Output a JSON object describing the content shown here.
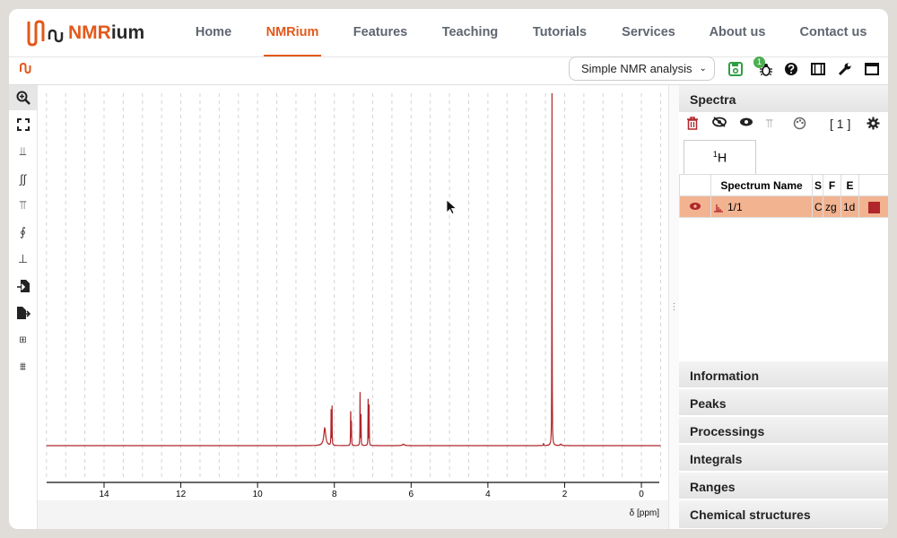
{
  "header": {
    "logo_text_a": "NMR",
    "logo_text_b": "ium",
    "nav": [
      {
        "label": "Home"
      },
      {
        "label": "NMRium",
        "active": true
      },
      {
        "label": "Features"
      },
      {
        "label": "Teaching"
      },
      {
        "label": "Tutorials"
      },
      {
        "label": "Services"
      },
      {
        "label": "About us"
      },
      {
        "label": "Contact us"
      }
    ]
  },
  "toolbar": {
    "workspace": "Simple NMR analysis",
    "notification_count": "1",
    "icons": [
      "save-icon",
      "bug-icon",
      "help-icon",
      "film-icon",
      "wrench-icon",
      "window-icon"
    ]
  },
  "left_tools": [
    "zoom-icon",
    "full-screen-icon",
    "peak-picking-icon",
    "integral-icon",
    "baseline-correction-icon",
    "phase-correction-icon",
    "range-picking-icon",
    "import-icon",
    "export-icon",
    "apodization-icon",
    "exclusion-zone-icon"
  ],
  "colors": {
    "accent": "#e3591b",
    "spectrum": "#b0262a",
    "selected_row": "#f2b391"
  },
  "chart_data": {
    "type": "line",
    "xlabel": "δ [ppm]",
    "xlim": [
      15.5,
      -0.5
    ],
    "x_reversed": true,
    "xticks": [
      "14",
      "12",
      "10",
      "8",
      "6",
      "4",
      "2",
      "0"
    ],
    "grid": "vertical dashed every 0.5 ppm",
    "series": [
      {
        "color": "#b0262a",
        "peaks": [
          {
            "ppm": 8.25,
            "intensity": 5,
            "width": 0.03
          },
          {
            "ppm": 8.085,
            "intensity": 10.5,
            "width": 0.004
          },
          {
            "ppm": 8.06,
            "intensity": 11,
            "width": 0.004
          },
          {
            "ppm": 7.575,
            "intensity": 10,
            "width": 0.004
          },
          {
            "ppm": 7.555,
            "intensity": 7,
            "width": 0.004
          },
          {
            "ppm": 7.33,
            "intensity": 15,
            "width": 0.004
          },
          {
            "ppm": 7.305,
            "intensity": 9,
            "width": 0.004
          },
          {
            "ppm": 7.12,
            "intensity": 13,
            "width": 0.004
          },
          {
            "ppm": 7.095,
            "intensity": 12,
            "width": 0.004
          },
          {
            "ppm": 6.2,
            "intensity": 0.4,
            "width": 0.03
          },
          {
            "ppm": 2.55,
            "intensity": 0.7,
            "width": 0.005
          },
          {
            "ppm": 2.33,
            "intensity": 100,
            "width": 0.004
          },
          {
            "ppm": 2.1,
            "intensity": 0.4,
            "width": 0.02
          }
        ]
      }
    ]
  },
  "right_panel": {
    "spectra_title": "Spectra",
    "count": "[ 1 ]",
    "tab": "1H",
    "tab_sup": "1",
    "tab_main": "H",
    "columns": [
      "",
      "Spectrum Name",
      "S",
      "F",
      "E",
      ""
    ],
    "rows": [
      {
        "name": "1/1",
        "solvent": "C",
        "pulse": "zg",
        "experiment": "1d",
        "color": "#b0262a"
      }
    ],
    "sections": [
      "Information",
      "Peaks",
      "Processings",
      "Integrals",
      "Ranges",
      "Chemical structures"
    ]
  }
}
